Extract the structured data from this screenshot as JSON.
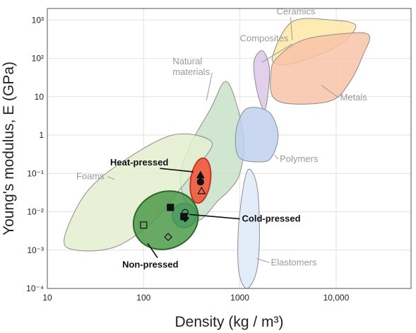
{
  "chart_data": {
    "type": "scatter",
    "title": "",
    "xlabel": "Density (kg / m³)",
    "ylabel": "Young's modulus, E (GPa)",
    "x_scale": "log",
    "y_scale": "log",
    "xlim": [
      10,
      60000
    ],
    "ylim": [
      0.0001,
      2000
    ],
    "x_ticks": [
      {
        "value": 10,
        "label": "10"
      },
      {
        "value": 100,
        "label": "100"
      },
      {
        "value": 1000,
        "label": "1000"
      },
      {
        "value": 10000,
        "label": "10,000"
      }
    ],
    "y_ticks": [
      {
        "value": 1000,
        "label": "10³"
      },
      {
        "value": 100,
        "label": "10²"
      },
      {
        "value": 10,
        "label": "10"
      },
      {
        "value": 1,
        "label": "1"
      },
      {
        "value": 0.1,
        "label": "10⁻¹"
      },
      {
        "value": 0.01,
        "label": "10⁻²"
      },
      {
        "value": 0.001,
        "label": "10⁻³"
      },
      {
        "value": 0.0001,
        "label": "10⁻⁴"
      }
    ],
    "grid": true,
    "families": [
      {
        "name": "Ceramics",
        "color": "#fde8a6",
        "stroke": "#8c8c8c",
        "region": [
          [
            2200,
            120
          ],
          [
            3500,
            900
          ],
          [
            9000,
            1000
          ],
          [
            16000,
            700
          ],
          [
            10000,
            200
          ],
          [
            4000,
            80
          ],
          [
            2500,
            70
          ]
        ],
        "label_at": [
          2400,
          1400
        ]
      },
      {
        "name": "Composites",
        "color": "#dcc8e8",
        "stroke": "#8c8c8c",
        "region": [
          [
            1400,
            80
          ],
          [
            1700,
            160
          ],
          [
            2000,
            70
          ],
          [
            2000,
            20
          ],
          [
            1800,
            4.5
          ],
          [
            1500,
            15
          ]
        ],
        "label_at": [
          1000,
          280
        ]
      },
      {
        "name": "Metals",
        "color": "#f8c3a8",
        "stroke": "#8c8c8c",
        "region": [
          [
            2200,
            10
          ],
          [
            2100,
            40
          ],
          [
            2400,
            100
          ],
          [
            4500,
            300
          ],
          [
            13000,
            450
          ],
          [
            22000,
            400
          ],
          [
            19000,
            120
          ],
          [
            14000,
            25
          ],
          [
            9000,
            8
          ],
          [
            3500,
            6.5
          ]
        ],
        "label_at": [
          11000,
          8
        ]
      },
      {
        "name": "Natural materials",
        "color": "#c8e2c8",
        "stroke": "#8c8c8c",
        "region": [
          [
            240,
            0.06
          ],
          [
            300,
            0.5
          ],
          [
            500,
            5
          ],
          [
            700,
            25
          ],
          [
            900,
            8
          ],
          [
            1100,
            0.7
          ],
          [
            1000,
            0.1
          ],
          [
            800,
            0.04
          ],
          [
            600,
            0.02
          ],
          [
            350,
            0.006
          ]
        ],
        "label_at": [
          200,
          70
        ]
      },
      {
        "name": "Polymers",
        "color": "#bfd0ee",
        "stroke": "#8c8c8c",
        "region": [
          [
            900,
            0.6
          ],
          [
            950,
            2
          ],
          [
            1200,
            5
          ],
          [
            2000,
            4
          ],
          [
            2500,
            1
          ],
          [
            2100,
            0.25
          ],
          [
            1500,
            0.2
          ],
          [
            1000,
            0.25
          ]
        ],
        "label_at": [
          2600,
          0.2
        ]
      },
      {
        "name": "Foams",
        "color": "#e4efcf",
        "stroke": "#8c8c8c",
        "region": [
          [
            15,
            0.002
          ],
          [
            25,
            0.03
          ],
          [
            60,
            0.2
          ],
          [
            200,
            1
          ],
          [
            500,
            0.7
          ],
          [
            400,
            0.2
          ],
          [
            220,
            0.03
          ],
          [
            120,
            0.005
          ],
          [
            50,
            0.0012
          ],
          [
            20,
            0.001
          ]
        ],
        "label_at": [
          20,
          0.07
        ]
      },
      {
        "name": "Elastomers",
        "color": "#ddeaf8",
        "stroke": "#8c8c8c",
        "region": [
          [
            950,
            0.001
          ],
          [
            1000,
            0.01
          ],
          [
            1200,
            0.12
          ],
          [
            1500,
            0.05
          ],
          [
            1600,
            0.003
          ],
          [
            1500,
            0.0003
          ],
          [
            1200,
            0.0001
          ],
          [
            1000,
            0.0002
          ]
        ],
        "label_at": [
          2100,
          0.0004
        ]
      }
    ],
    "groups": [
      {
        "name": "Heat-pressed",
        "color": "#f0583a",
        "stroke": "#c0392b",
        "center": [
          390,
          0.065
        ],
        "label_at": [
          45,
          0.16
        ],
        "points": [
          {
            "x": 390,
            "y": 0.09,
            "marker": "triangle-filled"
          },
          {
            "x": 390,
            "y": 0.06,
            "marker": "circle-filled"
          },
          {
            "x": 400,
            "y": 0.035,
            "marker": "triangle-open"
          }
        ]
      },
      {
        "name": "Cold-pressed",
        "color": "#4aaae2",
        "stroke": "#1f6fb0",
        "center": [
          265,
          0.008
        ],
        "label_at": [
          1050,
          0.0055
        ],
        "points": [
          {
            "x": 270,
            "y": 0.0095,
            "marker": "circle-open"
          },
          {
            "x": 262,
            "y": 0.0075,
            "marker": "square-filled"
          },
          {
            "x": 270,
            "y": 0.0068,
            "marker": "diamond-filled"
          }
        ]
      },
      {
        "name": "Non-pressed",
        "color": "#4e9a4a",
        "stroke": "#2c6a2a",
        "center": [
          170,
          0.006
        ],
        "label_at": [
          60,
          0.00035
        ],
        "points": [
          {
            "x": 190,
            "y": 0.013,
            "marker": "square-filled"
          },
          {
            "x": 100,
            "y": 0.0045,
            "marker": "square-open"
          },
          {
            "x": 180,
            "y": 0.0022,
            "marker": "diamond-open"
          }
        ]
      }
    ]
  }
}
